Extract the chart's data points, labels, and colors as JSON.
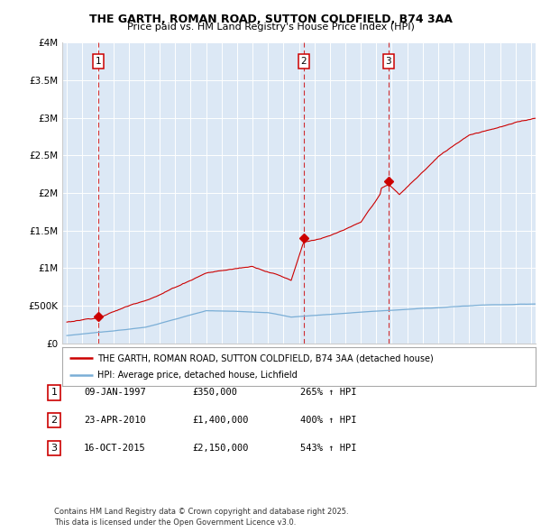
{
  "title_line1": "THE GARTH, ROMAN ROAD, SUTTON COLDFIELD, B74 3AA",
  "title_line2": "Price paid vs. HM Land Registry's House Price Index (HPI)",
  "ylabel_ticks": [
    "£0",
    "£500K",
    "£1M",
    "£1.5M",
    "£2M",
    "£2.5M",
    "£3M",
    "£3.5M",
    "£4M"
  ],
  "ylabel_values": [
    0,
    500000,
    1000000,
    1500000,
    2000000,
    2500000,
    3000000,
    3500000,
    4000000
  ],
  "ylim": [
    0,
    4000000
  ],
  "xlim_start": 1994.7,
  "xlim_end": 2025.3,
  "sale_dates_num": [
    1997.03,
    2010.31,
    2015.79
  ],
  "sale_prices": [
    350000,
    1400000,
    2150000
  ],
  "sale_labels": [
    "1",
    "2",
    "3"
  ],
  "sale_date_strings": [
    "09-JAN-1997",
    "23-APR-2010",
    "16-OCT-2015"
  ],
  "sale_price_strings": [
    "£350,000",
    "£1,400,000",
    "£2,150,000"
  ],
  "sale_hpi_strings": [
    "265% ↑ HPI",
    "400% ↑ HPI",
    "543% ↑ HPI"
  ],
  "legend_line1": "THE GARTH, ROMAN ROAD, SUTTON COLDFIELD, B74 3AA (detached house)",
  "legend_line2": "HPI: Average price, detached house, Lichfield",
  "footnote": "Contains HM Land Registry data © Crown copyright and database right 2025.\nThis data is licensed under the Open Government Licence v3.0.",
  "line_color_red": "#cc0000",
  "line_color_blue": "#7aaed6",
  "background_color": "#dce8f5",
  "grid_color": "#ffffff",
  "dashed_line_color": "#cc0000",
  "fig_bg": "#f0f0f0"
}
